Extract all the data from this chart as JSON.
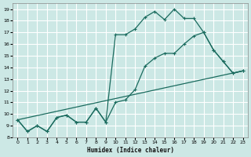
{
  "xlabel": "Humidex (Indice chaleur)",
  "bg_color": "#cce8e5",
  "grid_color": "#ffffff",
  "line_color": "#1a6b5e",
  "xlim": [
    -0.5,
    23.5
  ],
  "ylim": [
    8,
    19.5
  ],
  "xticks": [
    0,
    1,
    2,
    3,
    4,
    5,
    6,
    7,
    8,
    9,
    10,
    11,
    12,
    13,
    14,
    15,
    16,
    17,
    18,
    19,
    20,
    21,
    22,
    23
  ],
  "yticks": [
    8,
    9,
    10,
    11,
    12,
    13,
    14,
    15,
    16,
    17,
    18,
    19
  ],
  "line1_x": [
    0,
    1,
    2,
    3,
    4,
    5,
    6,
    7,
    8,
    9,
    10,
    11,
    12,
    13,
    14,
    15,
    16,
    17,
    18,
    19,
    20,
    21,
    22,
    23
  ],
  "line1_y": [
    9.5,
    8.5,
    9.0,
    8.5,
    9.7,
    9.9,
    9.3,
    9.3,
    10.5,
    9.3,
    16.8,
    16.8,
    17.3,
    18.3,
    18.8,
    18.1,
    19.0,
    18.2,
    18.2,
    17.0,
    15.5,
    14.5,
    13.5,
    13.7
  ],
  "line2_x": [
    0,
    1,
    2,
    3,
    4,
    5,
    6,
    7,
    8,
    9,
    10,
    11,
    12,
    13,
    14,
    15,
    16,
    17,
    18,
    19,
    20,
    21,
    22,
    23
  ],
  "line2_y": [
    9.5,
    8.5,
    9.0,
    8.5,
    9.7,
    9.9,
    9.3,
    9.3,
    10.5,
    9.3,
    11.0,
    11.2,
    12.1,
    14.1,
    14.8,
    15.2,
    15.2,
    16.0,
    16.7,
    17.0,
    15.5,
    14.5,
    13.5,
    13.7
  ],
  "line3_x": [
    0,
    23
  ],
  "line3_y": [
    9.5,
    13.7
  ]
}
